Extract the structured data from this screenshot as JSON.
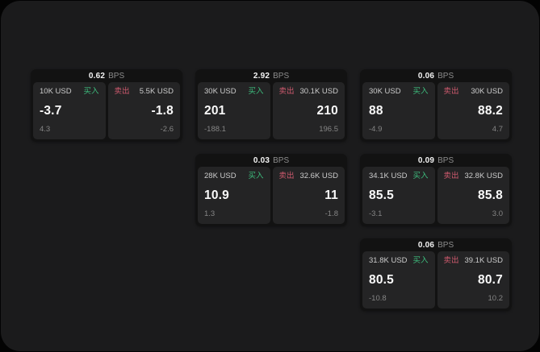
{
  "labels": {
    "bps": "BPS",
    "buy": "买入",
    "sell": "卖出"
  },
  "colors": {
    "buy_green": "#3dbd7d",
    "sell_red": "#cf5a6e",
    "panel_bg": "#1b1b1c",
    "card_bg": "#121212",
    "cell_bg": "#242425"
  },
  "cards": [
    {
      "bps": "0.62",
      "col": 1,
      "row": 1,
      "buy": {
        "amount": "10K USD",
        "value": "-3.7",
        "sub": "4.3"
      },
      "sell": {
        "amount": "5.5K USD",
        "value": "-1.8",
        "sub": "-2.6"
      }
    },
    {
      "bps": "2.92",
      "col": 2,
      "row": 1,
      "buy": {
        "amount": "30K USD",
        "value": "201",
        "sub": "-188.1"
      },
      "sell": {
        "amount": "30.1K USD",
        "value": "210",
        "sub": "196.5"
      }
    },
    {
      "bps": "0.06",
      "col": 3,
      "row": 1,
      "buy": {
        "amount": "30K USD",
        "value": "88",
        "sub": "-4.9"
      },
      "sell": {
        "amount": "30K USD",
        "value": "88.2",
        "sub": "4.7"
      }
    },
    {
      "bps": "0.03",
      "col": 2,
      "row": 2,
      "buy": {
        "amount": "28K USD",
        "value": "10.9",
        "sub": "1.3"
      },
      "sell": {
        "amount": "32.6K USD",
        "value": "11",
        "sub": "-1.8"
      }
    },
    {
      "bps": "0.09",
      "col": 3,
      "row": 2,
      "buy": {
        "amount": "34.1K USD",
        "value": "85.5",
        "sub": "-3.1"
      },
      "sell": {
        "amount": "32.8K USD",
        "value": "85.8",
        "sub": "3.0"
      }
    },
    {
      "bps": "0.06",
      "col": 3,
      "row": 3,
      "buy": {
        "amount": "31.8K USD",
        "value": "80.5",
        "sub": "-10.8"
      },
      "sell": {
        "amount": "39.1K USD",
        "value": "80.7",
        "sub": "10.2"
      }
    }
  ]
}
